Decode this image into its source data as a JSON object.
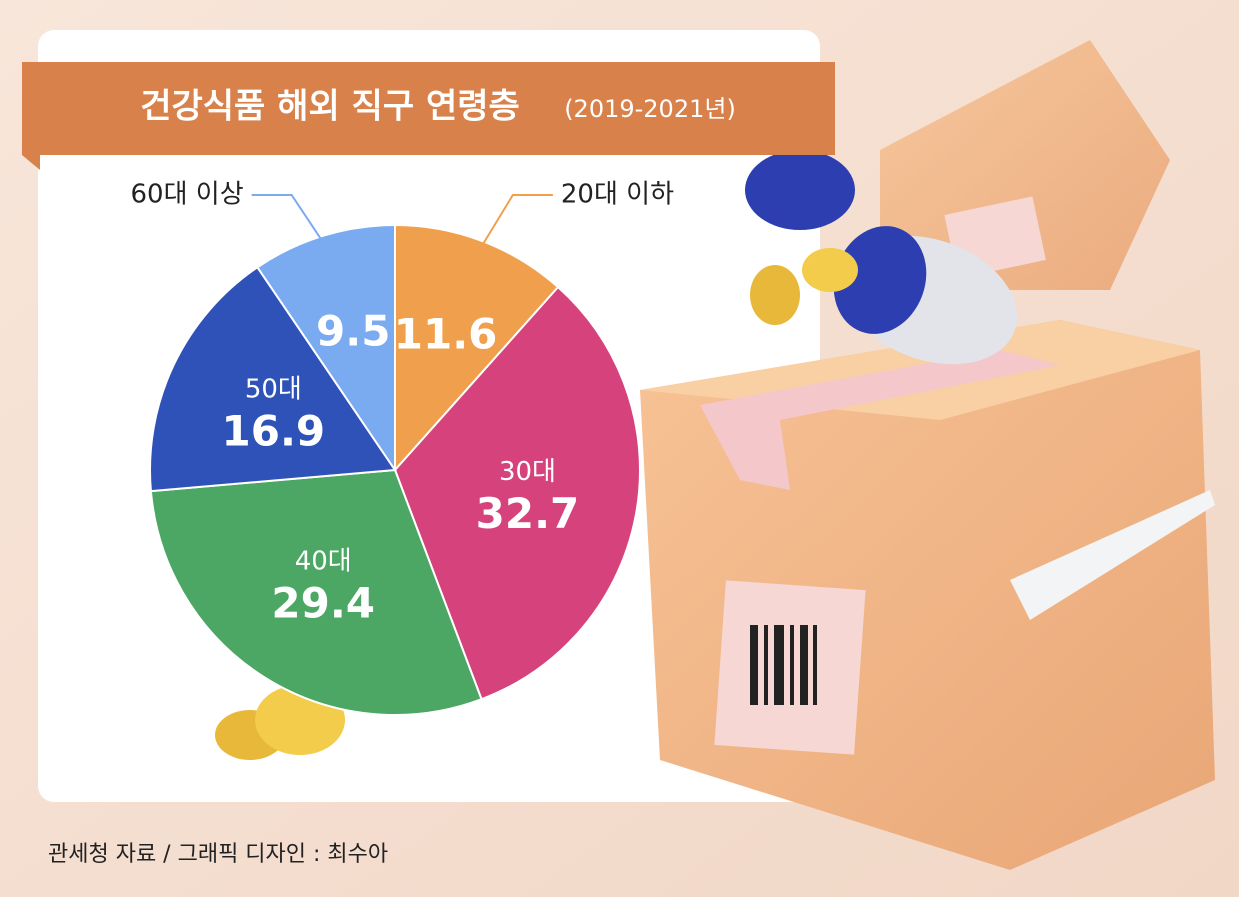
{
  "chart_data": {
    "type": "pie",
    "title": "건강식품 해외 직구 연령층",
    "subtitle": "(2019-2021년)",
    "categories": [
      "20대 이하",
      "30대",
      "40대",
      "50대",
      "60대 이상"
    ],
    "values": [
      11.6,
      32.7,
      29.4,
      16.9,
      9.5
    ],
    "colors": [
      "#f0a04c",
      "#d6427c",
      "#4ba763",
      "#2f52b8",
      "#7aaaf0"
    ],
    "source": "관세청 자료 / 그래픽 디자인 : 최수아"
  }
}
